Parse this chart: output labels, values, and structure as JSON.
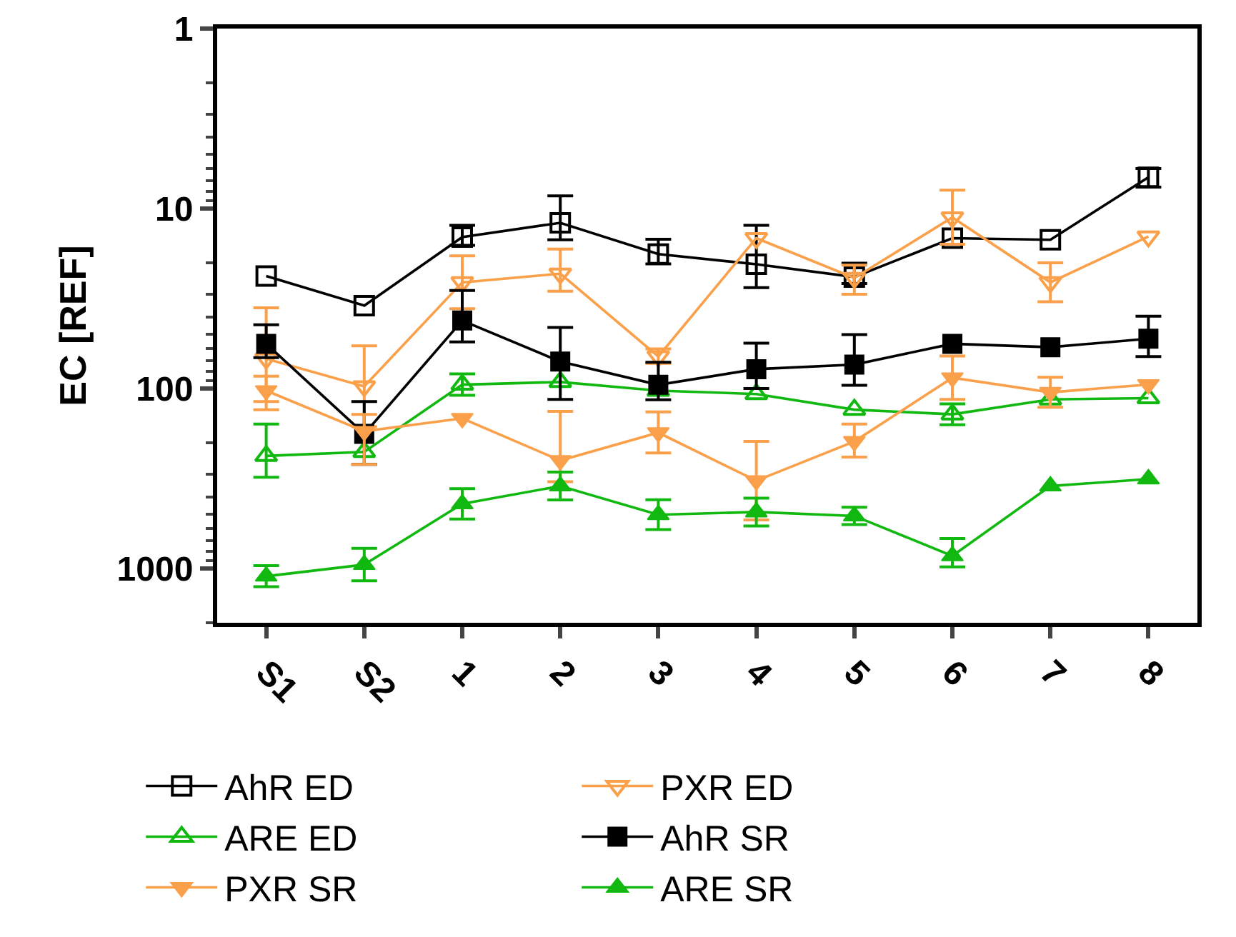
{
  "chart_data": {
    "type": "line",
    "ylabel": "EC [REF]",
    "categories": [
      "S1",
      "S2",
      "1",
      "2",
      "3",
      "4",
      "5",
      "6",
      "7",
      "8"
    ],
    "log": "y",
    "ylim": [
      2000,
      1
    ],
    "yticks": [
      1,
      10,
      100,
      1000
    ],
    "grid": false,
    "legend": "bottom",
    "series": [
      {
        "name": "AhR ED",
        "color": "#000000",
        "marker": "square-open",
        "values": [
          23.7,
          34.6,
          14.4,
          12,
          17.9,
          20.4,
          24,
          14.6,
          14.9,
          6.7
        ],
        "errors": [
          null,
          null,
          [
            12.4,
            16.0
          ],
          [
            8.5,
            14.9
          ],
          [
            14.8,
            20.3
          ],
          [
            12.4,
            27.5
          ],
          [
            20.1,
            26.1
          ],
          null,
          null,
          [
            6.0,
            7.6
          ]
        ]
      },
      {
        "name": "PXR ED",
        "color": "#fba04a",
        "marker": "triangle-down-open",
        "values": [
          68.3,
          97.3,
          25.7,
          23,
          66.3,
          14.6,
          24.3,
          11.2,
          25.7,
          14.3
        ],
        "errors": [
          [
            35.6,
            131
          ],
          [
            57.9,
            163
          ],
          [
            18.3,
            36
          ],
          [
            16.8,
            28.8
          ],
          [
            60.2,
            72.4
          ],
          null,
          [
            20.6,
            29.9
          ],
          [
            7.9,
            15.8
          ],
          [
            20,
            32.9
          ],
          null
        ]
      },
      {
        "name": "ARE ED",
        "color": "#10b810",
        "marker": "triangle-open",
        "values": [
          236.6,
          224.8,
          95.1,
          91.9,
          102.7,
          107.2,
          131,
          139,
          114.8,
          113
        ],
        "errors": [
          [
            157.4,
            311
          ],
          null,
          [
            82.8,
            109
          ],
          null,
          null,
          null,
          null,
          [
            121.6,
            159
          ],
          null,
          null
        ]
      },
      {
        "name": "AhR SR",
        "color": "#000000",
        "marker": "square",
        "values": [
          56.4,
          178.6,
          41.9,
          70.8,
          95.3,
          78,
          73.6,
          56.4,
          58.9,
          52.8
        ],
        "errors": [
          [
            44.2,
            67.3
          ],
          [
            118,
            264
          ],
          [
            28.5,
            55.1
          ],
          [
            45.8,
            114.8
          ],
          [
            71.4,
            115.5
          ],
          [
            56,
            100
          ],
          [
            50.1,
            95.9
          ],
          null,
          null,
          [
            39.6,
            66.4
          ]
        ]
      },
      {
        "name": "PXR SR",
        "color": "#fba04a",
        "marker": "triangle-down",
        "values": [
          102.7,
          172.7,
          146.4,
          251,
          175.7,
          325,
          196.6,
          87.1,
          104.9,
          95
        ],
        "errors": [
          [
            85.3,
            118
          ],
          [
            139,
            264
          ],
          null,
          [
            134,
            329
          ],
          [
            134.7,
            228
          ],
          [
            196.6,
            537
          ],
          [
            157.4,
            240
          ],
          [
            66,
            114.8
          ],
          [
            86.5,
            127
          ],
          null
        ]
      },
      {
        "name": "ARE SR",
        "color": "#10b810",
        "marker": "triangle",
        "values": [
          1103,
          951,
          437,
          348,
          502,
          485,
          510,
          850,
          348,
          318
        ],
        "errors": [
          [
            964,
            1260
          ],
          [
            772,
            1170
          ],
          [
            360,
            530
          ],
          [
            291,
            416
          ],
          [
            415,
            607
          ],
          [
            406,
            580
          ],
          [
            456,
            570
          ],
          [
            681,
            979
          ],
          null,
          null
        ]
      }
    ]
  }
}
